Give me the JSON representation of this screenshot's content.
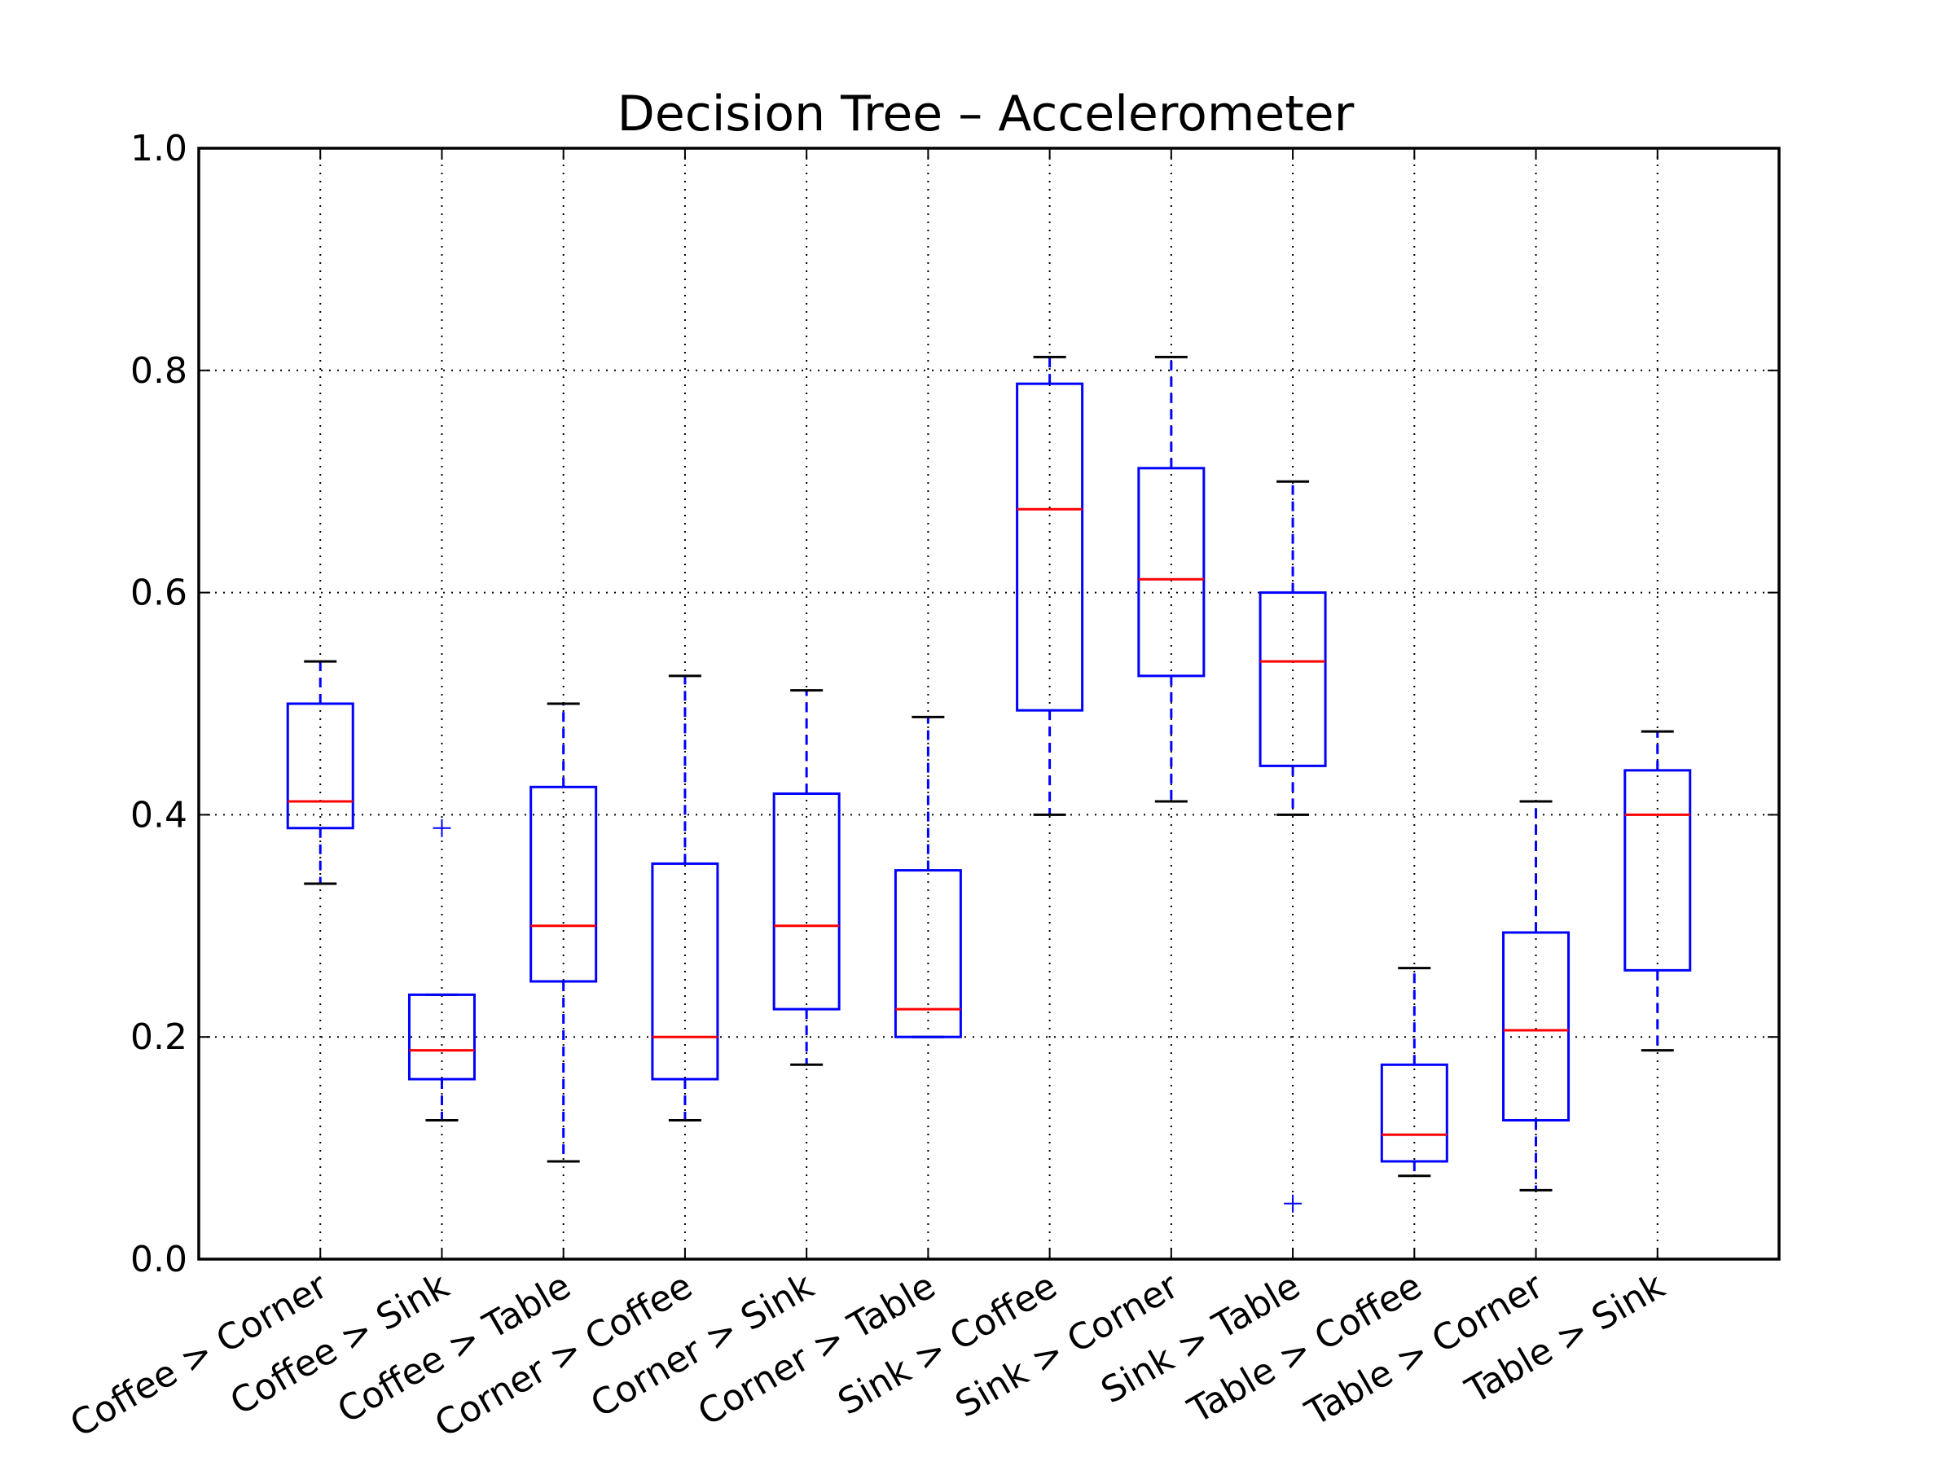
{
  "chart_data": {
    "type": "box",
    "title": "Decision Tree – Accelerometer",
    "xlabel": "",
    "ylabel": "",
    "ylim": [
      0.0,
      1.0
    ],
    "yticks": [
      "0.0",
      "0.2",
      "0.4",
      "0.6",
      "0.8",
      "1.0"
    ],
    "grid": true,
    "colors": {
      "box": "#0000ff",
      "median": "#ff0000",
      "cap": "#000000",
      "flier": "#0000ff"
    },
    "categories": [
      "Coffee > Corner",
      "Coffee > Sink",
      "Coffee > Table",
      "Corner > Coffee",
      "Corner > Sink",
      "Corner > Table",
      "Sink > Coffee",
      "Sink > Corner",
      "Sink > Table",
      "Table > Coffee",
      "Table > Corner",
      "Table > Sink"
    ],
    "boxes": [
      {
        "whisker_low": 0.338,
        "q1": 0.388,
        "median": 0.412,
        "q3": 0.5,
        "whisker_high": 0.538,
        "fliers": []
      },
      {
        "whisker_low": 0.125,
        "q1": 0.162,
        "median": 0.188,
        "q3": 0.238,
        "whisker_high": 0.238,
        "fliers": [
          0.388
        ]
      },
      {
        "whisker_low": 0.088,
        "q1": 0.25,
        "median": 0.3,
        "q3": 0.425,
        "whisker_high": 0.5,
        "fliers": []
      },
      {
        "whisker_low": 0.125,
        "q1": 0.162,
        "median": 0.2,
        "q3": 0.356,
        "whisker_high": 0.525,
        "fliers": []
      },
      {
        "whisker_low": 0.175,
        "q1": 0.225,
        "median": 0.3,
        "q3": 0.419,
        "whisker_high": 0.512,
        "fliers": []
      },
      {
        "whisker_low": 0.2,
        "q1": 0.2,
        "median": 0.225,
        "q3": 0.35,
        "whisker_high": 0.488,
        "fliers": []
      },
      {
        "whisker_low": 0.4,
        "q1": 0.494,
        "median": 0.675,
        "q3": 0.788,
        "whisker_high": 0.812,
        "fliers": []
      },
      {
        "whisker_low": 0.412,
        "q1": 0.525,
        "median": 0.612,
        "q3": 0.712,
        "whisker_high": 0.812,
        "fliers": []
      },
      {
        "whisker_low": 0.4,
        "q1": 0.444,
        "median": 0.538,
        "q3": 0.6,
        "whisker_high": 0.7,
        "fliers": [
          0.05
        ]
      },
      {
        "whisker_low": 0.075,
        "q1": 0.088,
        "median": 0.112,
        "q3": 0.175,
        "whisker_high": 0.262,
        "fliers": []
      },
      {
        "whisker_low": 0.062,
        "q1": 0.125,
        "median": 0.206,
        "q3": 0.294,
        "whisker_high": 0.412,
        "fliers": []
      },
      {
        "whisker_low": 0.188,
        "q1": 0.26,
        "median": 0.4,
        "q3": 0.44,
        "whisker_high": 0.475,
        "fliers": []
      }
    ]
  }
}
